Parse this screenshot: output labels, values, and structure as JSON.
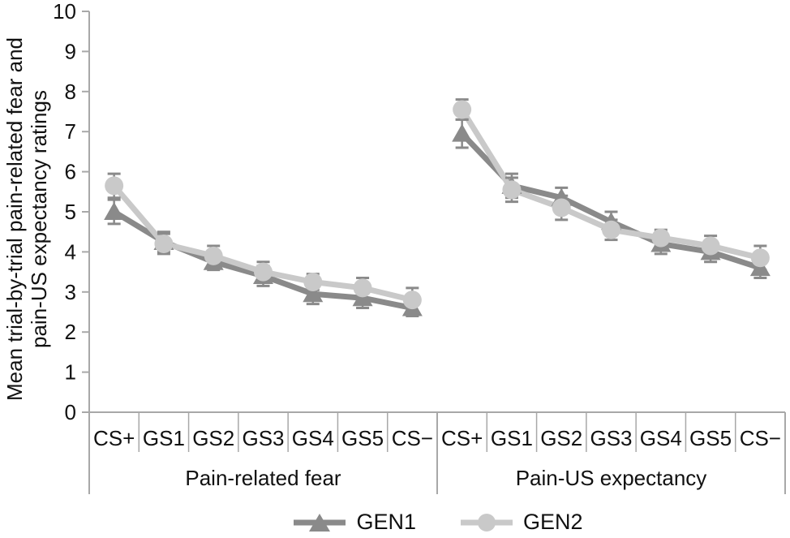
{
  "figure": {
    "background": "#ffffff"
  },
  "chart_data": {
    "type": "line",
    "title": "",
    "ylabel_lines": [
      "Mean trial-by-trial pain-related fear and",
      "pain-US expectancy ratings"
    ],
    "ylabel": "Mean trial-by-trial pain-related fear and pain-US expectancy ratings",
    "ylim": [
      0,
      10
    ],
    "yticks": [
      0,
      1,
      2,
      3,
      4,
      5,
      6,
      7,
      8,
      9,
      10
    ],
    "grid": false,
    "error_bars": true,
    "legend": [
      "GEN1",
      "GEN2"
    ],
    "legend_position": "bottom-center",
    "markers": {
      "GEN1": "triangle",
      "GEN2": "circle"
    },
    "colors": {
      "GEN1": "#8a8a8a",
      "GEN2": "#c9c9c9",
      "error_bar": "#8a8a8a",
      "axis": "#a8a8a8",
      "text": "#111111"
    },
    "panels": [
      {
        "label": "Pain-related fear",
        "categories": [
          "CS+",
          "GS1",
          "GS2",
          "GS3",
          "GS4",
          "GS5",
          "CS−"
        ],
        "series": [
          {
            "name": "GEN1",
            "marker": "triangle",
            "values": [
              5.0,
              4.25,
              3.75,
              3.4,
              2.95,
              2.85,
              2.6
            ],
            "errors": [
              0.3,
              0.25,
              0.2,
              0.25,
              0.25,
              0.25,
              0.2
            ]
          },
          {
            "name": "GEN2",
            "marker": "circle",
            "values": [
              5.65,
              4.2,
              3.9,
              3.5,
              3.25,
              3.1,
              2.8
            ],
            "errors": [
              0.3,
              0.25,
              0.25,
              0.25,
              0.2,
              0.25,
              0.3
            ]
          }
        ]
      },
      {
        "label": "Pain-US expectancy",
        "categories": [
          "CS+",
          "GS1",
          "GS2",
          "GS3",
          "GS4",
          "GS5",
          "CS−"
        ],
        "series": [
          {
            "name": "GEN1",
            "marker": "triangle",
            "values": [
              6.95,
              5.65,
              5.35,
              4.75,
              4.2,
              4.0,
              3.6
            ],
            "errors": [
              0.35,
              0.3,
              0.25,
              0.25,
              0.25,
              0.25,
              0.25
            ]
          },
          {
            "name": "GEN2",
            "marker": "circle",
            "values": [
              7.55,
              5.55,
              5.1,
              4.55,
              4.35,
              4.15,
              3.85
            ],
            "errors": [
              0.25,
              0.3,
              0.3,
              0.25,
              0.2,
              0.25,
              0.3
            ]
          }
        ]
      }
    ]
  }
}
